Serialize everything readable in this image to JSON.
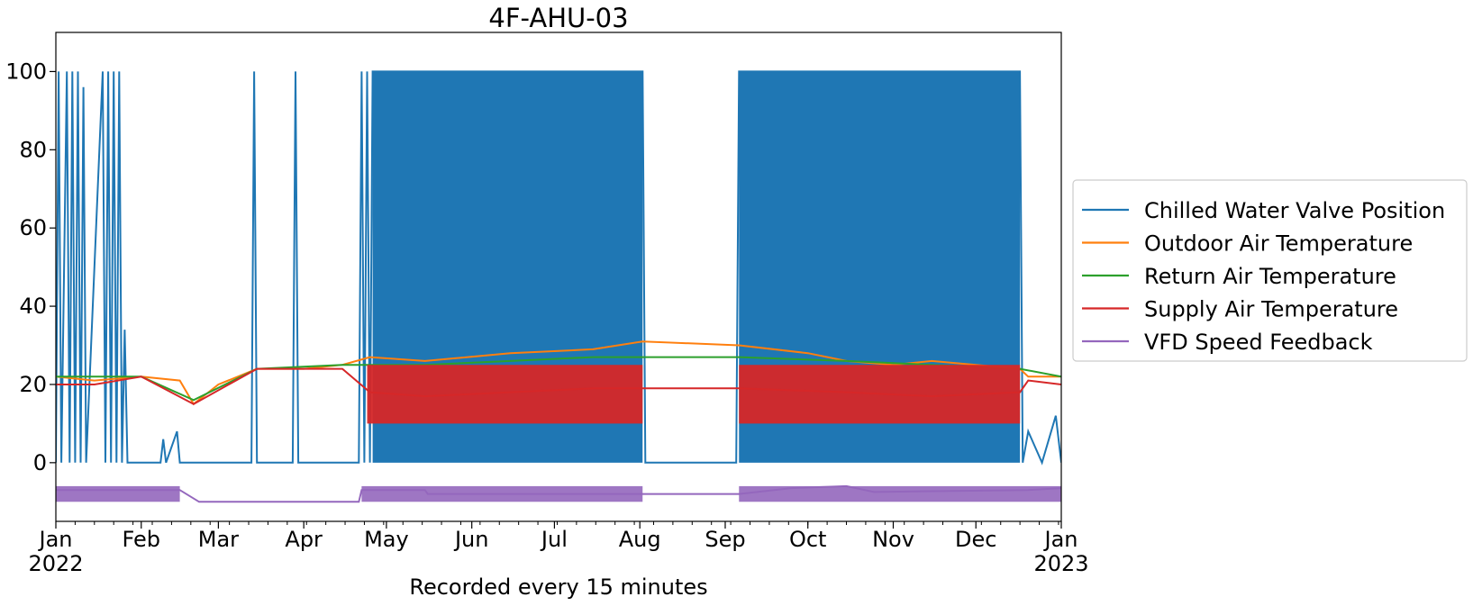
{
  "chart_data": {
    "type": "line",
    "title": "4F-AHU-03",
    "xlabel": "Recorded every 15 minutes",
    "ylabel": "",
    "ylim": [
      -15,
      110
    ],
    "xlim": [
      "2022-01-01",
      "2023-01-01"
    ],
    "yticks": [
      0,
      20,
      40,
      60,
      80,
      100
    ],
    "xticks": [
      {
        "date": "2022-01-01",
        "label": "Jan",
        "sub": "2022"
      },
      {
        "date": "2022-02-01",
        "label": "Feb",
        "sub": ""
      },
      {
        "date": "2022-03-01",
        "label": "Mar",
        "sub": ""
      },
      {
        "date": "2022-04-01",
        "label": "Apr",
        "sub": ""
      },
      {
        "date": "2022-05-01",
        "label": "May",
        "sub": ""
      },
      {
        "date": "2022-06-01",
        "label": "Jun",
        "sub": ""
      },
      {
        "date": "2022-07-01",
        "label": "Jul",
        "sub": ""
      },
      {
        "date": "2022-08-01",
        "label": "Aug",
        "sub": ""
      },
      {
        "date": "2022-09-01",
        "label": "Sep",
        "sub": ""
      },
      {
        "date": "2022-10-01",
        "label": "Oct",
        "sub": ""
      },
      {
        "date": "2022-11-01",
        "label": "Nov",
        "sub": ""
      },
      {
        "date": "2022-12-01",
        "label": "Dec",
        "sub": ""
      },
      {
        "date": "2023-01-01",
        "label": "Jan",
        "sub": "2023"
      }
    ],
    "grid": false,
    "legend_position": "right, outside plot",
    "series": [
      {
        "name": "Chilled Water Valve Position",
        "color": "#1f77b4",
        "points": [
          [
            "2022-01-01",
            0
          ],
          [
            "2022-01-02",
            100
          ],
          [
            "2022-01-03",
            0
          ],
          [
            "2022-01-05",
            100
          ],
          [
            "2022-01-06",
            0
          ],
          [
            "2022-01-07",
            100
          ],
          [
            "2022-01-08",
            0
          ],
          [
            "2022-01-09",
            100
          ],
          [
            "2022-01-10",
            0
          ],
          [
            "2022-01-11",
            96
          ],
          [
            "2022-01-12",
            0
          ],
          [
            "2022-01-18",
            100
          ],
          [
            "2022-01-19",
            0
          ],
          [
            "2022-01-20",
            100
          ],
          [
            "2022-01-21",
            0
          ],
          [
            "2022-01-22",
            100
          ],
          [
            "2022-01-23",
            0
          ],
          [
            "2022-01-24",
            100
          ],
          [
            "2022-01-25",
            0
          ],
          [
            "2022-01-26",
            34
          ],
          [
            "2022-01-27",
            0
          ],
          [
            "2022-02-08",
            0
          ],
          [
            "2022-02-09",
            6
          ],
          [
            "2022-02-10",
            0
          ],
          [
            "2022-02-14",
            8
          ],
          [
            "2022-02-15",
            0
          ],
          [
            "2022-03-13",
            0
          ],
          [
            "2022-03-14",
            100
          ],
          [
            "2022-03-15",
            0
          ],
          [
            "2022-03-28",
            0
          ],
          [
            "2022-03-29",
            100
          ],
          [
            "2022-03-30",
            0
          ],
          [
            "2022-04-21",
            0
          ],
          [
            "2022-04-22",
            100
          ],
          [
            "2022-04-23",
            0
          ],
          [
            "2022-04-24",
            100
          ],
          [
            "2022-04-25",
            0
          ],
          [
            "2022-04-26",
            100
          ],
          [
            "2022-08-02",
            100
          ],
          [
            "2022-08-03",
            0
          ],
          [
            "2022-09-05",
            0
          ],
          [
            "2022-09-06",
            100
          ],
          [
            "2022-12-17",
            100
          ],
          [
            "2022-12-18",
            0
          ],
          [
            "2022-12-20",
            8
          ],
          [
            "2022-12-25",
            0
          ],
          [
            "2022-12-30",
            12
          ],
          [
            "2023-01-01",
            0
          ]
        ]
      },
      {
        "name": "Outdoor Air Temperature",
        "color": "#ff7f0e",
        "points": [
          [
            "2022-01-01",
            22
          ],
          [
            "2022-01-15",
            21
          ],
          [
            "2022-02-01",
            22
          ],
          [
            "2022-02-15",
            21
          ],
          [
            "2022-02-20",
            15
          ],
          [
            "2022-03-01",
            20
          ],
          [
            "2022-03-15",
            24
          ],
          [
            "2022-04-01",
            24
          ],
          [
            "2022-04-15",
            25
          ],
          [
            "2022-04-25",
            27
          ],
          [
            "2022-05-15",
            26
          ],
          [
            "2022-06-15",
            28
          ],
          [
            "2022-07-15",
            29
          ],
          [
            "2022-08-02",
            31
          ],
          [
            "2022-09-06",
            30
          ],
          [
            "2022-10-01",
            28
          ],
          [
            "2022-10-15",
            26
          ],
          [
            "2022-11-01",
            25
          ],
          [
            "2022-11-15",
            26
          ],
          [
            "2022-12-01",
            25
          ],
          [
            "2022-12-17",
            24
          ],
          [
            "2022-12-20",
            22
          ],
          [
            "2023-01-01",
            22
          ]
        ]
      },
      {
        "name": "Return Air Temperature",
        "color": "#2ca02c",
        "points": [
          [
            "2022-01-01",
            22
          ],
          [
            "2022-02-01",
            22
          ],
          [
            "2022-02-20",
            16
          ],
          [
            "2022-03-15",
            24
          ],
          [
            "2022-04-15",
            25
          ],
          [
            "2022-05-15",
            25
          ],
          [
            "2022-06-15",
            26
          ],
          [
            "2022-07-15",
            27
          ],
          [
            "2022-08-02",
            27
          ],
          [
            "2022-09-06",
            27
          ],
          [
            "2022-10-15",
            26
          ],
          [
            "2022-11-15",
            25
          ],
          [
            "2022-12-17",
            24
          ],
          [
            "2023-01-01",
            22
          ]
        ]
      },
      {
        "name": "Supply Air Temperature",
        "color": "#d62728",
        "points": [
          [
            "2022-01-01",
            20
          ],
          [
            "2022-01-15",
            20
          ],
          [
            "2022-02-01",
            22
          ],
          [
            "2022-02-20",
            15
          ],
          [
            "2022-03-15",
            24
          ],
          [
            "2022-04-15",
            24
          ],
          [
            "2022-04-25",
            18
          ],
          [
            "2022-05-15",
            17
          ],
          [
            "2022-06-15",
            18
          ],
          [
            "2022-07-15",
            19
          ],
          [
            "2022-08-02",
            19
          ],
          [
            "2022-09-06",
            19
          ],
          [
            "2022-10-15",
            18
          ],
          [
            "2022-11-15",
            17
          ],
          [
            "2022-12-17",
            18
          ],
          [
            "2022-12-20",
            21
          ],
          [
            "2023-01-01",
            20
          ]
        ],
        "band_min": 10,
        "band_max": 25
      },
      {
        "name": "VFD Speed Feedback",
        "color": "#9467bd",
        "points": [
          [
            "2022-01-01",
            -7
          ],
          [
            "2022-02-15",
            -7
          ],
          [
            "2022-02-22",
            -10
          ],
          [
            "2022-04-21",
            -10
          ],
          [
            "2022-04-22",
            -7
          ],
          [
            "2022-05-15",
            -7
          ],
          [
            "2022-05-16",
            -8
          ],
          [
            "2022-08-02",
            -8
          ],
          [
            "2022-09-06",
            -8
          ],
          [
            "2022-09-25",
            -6.5
          ],
          [
            "2022-10-15",
            -6
          ],
          [
            "2022-10-25",
            -7.5
          ],
          [
            "2022-12-20",
            -7
          ],
          [
            "2023-01-01",
            -6.5
          ]
        ]
      }
    ]
  }
}
